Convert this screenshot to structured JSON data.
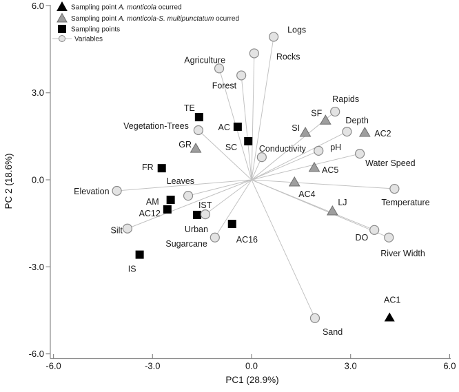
{
  "figure": {
    "background": "#ffffff"
  },
  "colors": {
    "axis": "#8a8a8a",
    "vector_line": "#c2c2c2",
    "variable_fill": "#e3e3e3",
    "variable_stroke": "#8a8a8a",
    "gray_triangle_fill": "#9e9e9e",
    "gray_triangle_stroke": "#6e6e6e",
    "black": "#000000",
    "text": "#1a1a1a"
  },
  "chart_data": {
    "type": "scatter",
    "subtype": "pca-biplot",
    "xlabel": "PC1 (28.9%)",
    "ylabel": "PC 2 (18.6%)",
    "xlim": [
      -6.0,
      6.0
    ],
    "ylim": [
      -6.0,
      6.0
    ],
    "grid": false,
    "x_ticks": {
      "values": [
        -6,
        -3,
        0,
        3,
        6
      ],
      "labels": [
        "-6.0",
        "-3.0",
        "0.0",
        "3.0",
        "6.0"
      ]
    },
    "y_ticks": {
      "values": [
        6,
        3,
        0,
        -3,
        -6
      ],
      "labels": [
        "6.0",
        "3.0",
        "0.0",
        "-3.0",
        "-6.0"
      ]
    },
    "legend": {
      "position": "top-left",
      "items": [
        {
          "symbol": "triangle-black",
          "text_pre": "Sampling point ",
          "text_italic": "A. monticola",
          "text_post": " ocurred"
        },
        {
          "symbol": "triangle-gray",
          "text_pre": "Sampling point ",
          "text_italic": "A. monticola-S. multipunctatum",
          "text_post": " ocurred"
        },
        {
          "symbol": "square-black",
          "text_pre": "Sampling points",
          "text_italic": "",
          "text_post": ""
        },
        {
          "symbol": "line-circle",
          "text_pre": "Variables",
          "text_italic": "",
          "text_post": ""
        }
      ]
    },
    "series": [
      {
        "name": "Variables",
        "marker": "circle",
        "vector_from_origin": true,
        "points": [
          {
            "label": "Logs",
            "x": 0.67,
            "y": 4.93,
            "anchor": "start",
            "ldx": 20,
            "ldy": -6
          },
          {
            "label": "Rocks",
            "x": 0.08,
            "y": 4.36,
            "anchor": "start",
            "ldx": 32,
            "ldy": 9
          },
          {
            "label": "Agriculture",
            "x": -0.98,
            "y": 3.84,
            "anchor": "end",
            "ldx": 9,
            "ldy": -8
          },
          {
            "label": "Forest",
            "x": -0.31,
            "y": 3.6,
            "anchor": "end",
            "ldx": -7,
            "ldy": 19
          },
          {
            "label": "Vegetation-Trees",
            "x": -1.61,
            "y": 1.71,
            "anchor": "end",
            "ldx": -14,
            "ldy": -2
          },
          {
            "label": "Elevation",
            "x": -4.08,
            "y": -0.38,
            "anchor": "end",
            "ldx": -11,
            "ldy": 5
          },
          {
            "label": "Leaves",
            "x": -1.92,
            "y": -0.55,
            "anchor": "end",
            "ldx": 9,
            "ldy": -17
          },
          {
            "label": "Silt",
            "x": -3.76,
            "y": -1.68,
            "anchor": "end",
            "ldx": -7,
            "ldy": 7
          },
          {
            "label": "Urban",
            "x": -1.4,
            "y": -1.19,
            "anchor": "end",
            "ldx": 4,
            "ldy": 26
          },
          {
            "label": "Sugarcane",
            "x": -1.11,
            "y": -1.99,
            "anchor": "end",
            "ldx": -11,
            "ldy": 13
          },
          {
            "label": "Conductivity",
            "x": 0.31,
            "y": 0.78,
            "anchor": "start",
            "ldx": -4,
            "ldy": -8
          },
          {
            "label": "pH",
            "x": 2.03,
            "y": 1.0,
            "anchor": "start",
            "ldx": 17,
            "ldy": -1
          },
          {
            "label": "Depth",
            "x": 2.89,
            "y": 1.66,
            "anchor": "start",
            "ldx": -2,
            "ldy": -12
          },
          {
            "label": "Rapids",
            "x": 2.53,
            "y": 2.35,
            "anchor": "start",
            "ldx": -4,
            "ldy": -14
          },
          {
            "label": "Water Speed",
            "x": 3.28,
            "y": 0.9,
            "anchor": "start",
            "ldx": 8,
            "ldy": 18
          },
          {
            "label": "Temperature",
            "x": 4.33,
            "y": -0.31,
            "anchor": "start",
            "ldx": -19,
            "ldy": 24
          },
          {
            "label": "DO",
            "x": 3.72,
            "y": -1.73,
            "anchor": "end",
            "ldx": -9,
            "ldy": 15
          },
          {
            "label": "River Width",
            "x": 4.16,
            "y": -1.99,
            "anchor": "start",
            "ldx": -12,
            "ldy": 27
          },
          {
            "label": "Sand",
            "x": 1.92,
            "y": -4.77,
            "anchor": "start",
            "ldx": 11,
            "ldy": 24
          }
        ]
      },
      {
        "name": "Sampling points",
        "marker": "square",
        "vector_from_origin": false,
        "points": [
          {
            "label": "TE",
            "x": -1.59,
            "y": 2.16,
            "anchor": "end",
            "ldx": -6,
            "ldy": -9
          },
          {
            "label": "AC",
            "x": -0.42,
            "y": 1.83,
            "anchor": "end",
            "ldx": -11,
            "ldy": 5
          },
          {
            "label": "SC",
            "x": -0.1,
            "y": 1.33,
            "anchor": "end",
            "ldx": -16,
            "ldy": 13
          },
          {
            "label": "FR",
            "x": -2.72,
            "y": 0.4,
            "anchor": "end",
            "ldx": -12,
            "ldy": 3
          },
          {
            "label": "AM",
            "x": -2.45,
            "y": -0.69,
            "anchor": "end",
            "ldx": -17,
            "ldy": 7
          },
          {
            "label": "AC12",
            "x": -2.55,
            "y": -1.02,
            "anchor": "end",
            "ldx": -10,
            "ldy": 10
          },
          {
            "label": "IST",
            "x": -1.65,
            "y": -1.21,
            "anchor": "start",
            "ldx": 2,
            "ldy": -10
          },
          {
            "label": "IS",
            "x": -3.39,
            "y": -2.58,
            "anchor": "end",
            "ldx": -5,
            "ldy": 25
          },
          {
            "label": "AC16",
            "x": -0.59,
            "y": -1.52,
            "anchor": "start",
            "ldx": 6,
            "ldy": 27
          }
        ]
      },
      {
        "name": "Sampling point A. monticola-S. multipunctatum ocurred",
        "marker": "triangle-gray",
        "vector_from_origin": false,
        "points": [
          {
            "label": "GR",
            "x": -1.69,
            "y": 1.09,
            "anchor": "end",
            "ldx": -6,
            "ldy": -1
          },
          {
            "label": "SI",
            "x": 1.63,
            "y": 1.64,
            "anchor": "end",
            "ldx": -8,
            "ldy": -2
          },
          {
            "label": "SF",
            "x": 2.24,
            "y": 2.06,
            "anchor": "end",
            "ldx": -5,
            "ldy": -6
          },
          {
            "label": "AC2",
            "x": 3.43,
            "y": 1.64,
            "anchor": "start",
            "ldx": 14,
            "ldy": 6
          },
          {
            "label": "AC5",
            "x": 1.9,
            "y": 0.43,
            "anchor": "start",
            "ldx": 11,
            "ldy": 8
          },
          {
            "label": "AC4",
            "x": 1.3,
            "y": -0.07,
            "anchor": "start",
            "ldx": 6,
            "ldy": 22
          },
          {
            "label": "LJ",
            "x": 2.45,
            "y": -1.07,
            "anchor": "start",
            "ldx": 8,
            "ldy": -8
          }
        ]
      },
      {
        "name": "Sampling point A. monticola ocurred",
        "marker": "triangle-black",
        "vector_from_origin": false,
        "points": [
          {
            "label": "AC1",
            "x": 4.18,
            "y": -4.74,
            "anchor": "middle",
            "ldx": 4,
            "ldy": -21
          }
        ]
      }
    ]
  }
}
